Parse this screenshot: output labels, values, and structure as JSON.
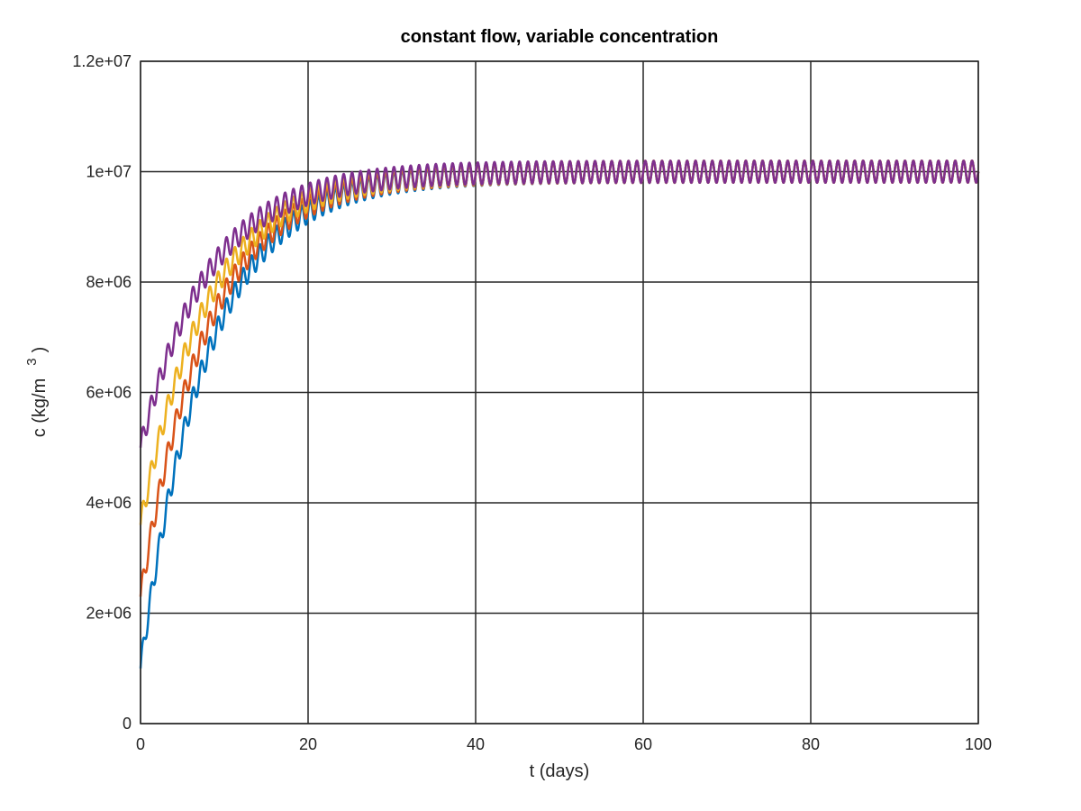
{
  "chart_data": {
    "type": "line",
    "title": "constant flow, variable concentration",
    "xlabel": "t (days)",
    "ylabel": {
      "base": "c (kg/m",
      "superscript": "3",
      "close": ")"
    },
    "xlim": [
      0,
      100
    ],
    "ylim": [
      0,
      12000000
    ],
    "xticks": [
      0,
      20,
      40,
      60,
      80,
      100
    ],
    "xtick_labels": [
      "0",
      "20",
      "40",
      "60",
      "80",
      "100"
    ],
    "yticks": [
      0,
      2000000,
      4000000,
      6000000,
      8000000,
      10000000,
      12000000
    ],
    "ytick_labels": [
      "0",
      "2e+06",
      "4e+06",
      "6e+06",
      "8e+06",
      "1e+07",
      "1.2e+07"
    ],
    "grid": true,
    "steady_state": 10000000,
    "oscillation_amplitude": 200000,
    "oscillation_period_days": 1,
    "series": [
      {
        "initial": 1000000,
        "color": "#0072BD"
      },
      {
        "initial": 2300000,
        "color": "#D95319"
      },
      {
        "initial": 3600000,
        "color": "#EDB120"
      },
      {
        "initial": 5000000,
        "color": "#7E2F8E"
      }
    ]
  }
}
